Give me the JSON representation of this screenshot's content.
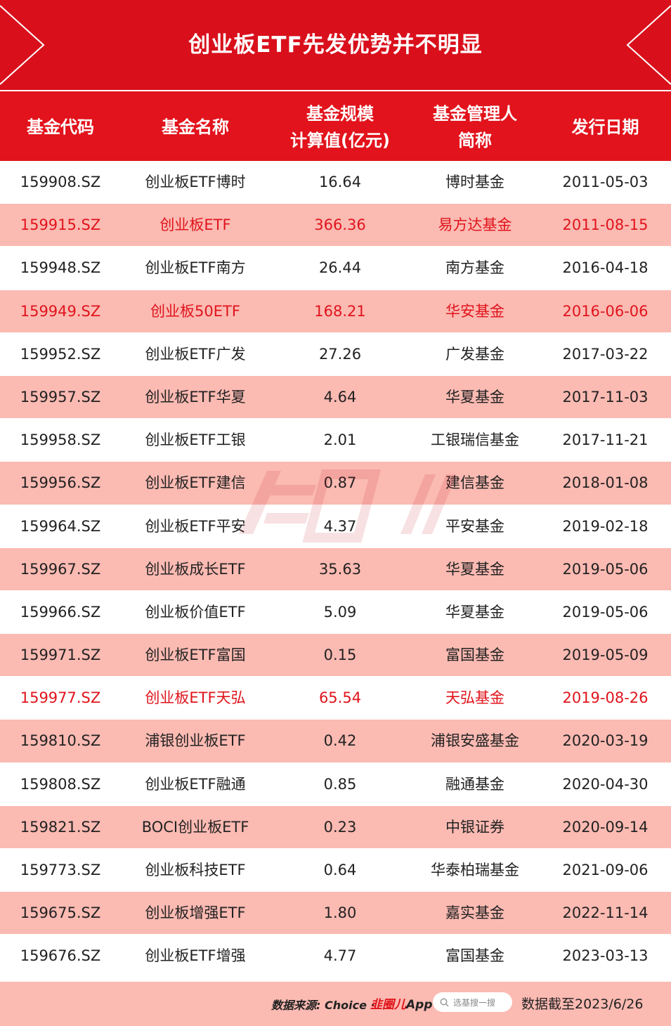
{
  "title": "创业板ETF先发优势并不明显",
  "headers": [
    [
      "基金代码"
    ],
    [
      "基金名称"
    ],
    [
      "基金规模",
      "计算值(亿元)"
    ],
    [
      "基金管理人",
      "简称"
    ],
    [
      "发行日期"
    ]
  ],
  "rows": [
    {
      "code": "159908.SZ",
      "name": "创业板ETF博时",
      "size": "16.64",
      "manager": "博时基金",
      "date": "2011-05-03",
      "highlight": false
    },
    {
      "code": "159915.SZ",
      "name": "创业板ETF",
      "size": "366.36",
      "manager": "易方达基金",
      "date": "2011-08-15",
      "highlight": true
    },
    {
      "code": "159948.SZ",
      "name": "创业板ETF南方",
      "size": "26.44",
      "manager": "南方基金",
      "date": "2016-04-18",
      "highlight": false
    },
    {
      "code": "159949.SZ",
      "name": "创业板50ETF",
      "size": "168.21",
      "manager": "华安基金",
      "date": "2016-06-06",
      "highlight": true
    },
    {
      "code": "159952.SZ",
      "name": "创业板ETF广发",
      "size": "27.26",
      "manager": "广发基金",
      "date": "2017-03-22",
      "highlight": false
    },
    {
      "code": "159957.SZ",
      "name": "创业板ETF华夏",
      "size": "4.64",
      "manager": "华夏基金",
      "date": "2017-11-03",
      "highlight": false
    },
    {
      "code": "159958.SZ",
      "name": "创业板ETF工银",
      "size": "2.01",
      "manager": "工银瑞信基金",
      "date": "2017-11-21",
      "highlight": false
    },
    {
      "code": "159956.SZ",
      "name": "创业板ETF建信",
      "size": "0.87",
      "manager": "建信基金",
      "date": "2018-01-08",
      "highlight": false
    },
    {
      "code": "159964.SZ",
      "name": "创业板ETF平安",
      "size": "4.37",
      "manager": "平安基金",
      "date": "2019-02-18",
      "highlight": false
    },
    {
      "code": "159967.SZ",
      "name": "创业板成长ETF",
      "size": "35.63",
      "manager": "华夏基金",
      "date": "2019-05-06",
      "highlight": false
    },
    {
      "code": "159966.SZ",
      "name": "创业板价值ETF",
      "size": "5.09",
      "manager": "华夏基金",
      "date": "2019-05-06",
      "highlight": false
    },
    {
      "code": "159971.SZ",
      "name": "创业板ETF富国",
      "size": "0.15",
      "manager": "富国基金",
      "date": "2019-05-09",
      "highlight": false
    },
    {
      "code": "159977.SZ",
      "name": "创业板ETF天弘",
      "size": "65.54",
      "manager": "天弘基金",
      "date": "2019-08-26",
      "highlight": true
    },
    {
      "code": "159810.SZ",
      "name": "浦银创业板ETF",
      "size": "0.42",
      "manager": "浦银安盛基金",
      "date": "2020-03-19",
      "highlight": false
    },
    {
      "code": "159808.SZ",
      "name": "创业板ETF融通",
      "size": "0.85",
      "manager": "融通基金",
      "date": "2020-04-30",
      "highlight": false
    },
    {
      "code": "159821.SZ",
      "name": "BOCI创业板ETF",
      "size": "0.23",
      "manager": "中银证券",
      "date": "2020-09-14",
      "highlight": false
    },
    {
      "code": "159773.SZ",
      "name": "创业板科技ETF",
      "size": "0.64",
      "manager": "华泰柏瑞基金",
      "date": "2021-09-06",
      "highlight": false
    },
    {
      "code": "159675.SZ",
      "name": "创业板增强ETF",
      "size": "1.80",
      "manager": "嘉实基金",
      "date": "2022-11-14",
      "highlight": false
    },
    {
      "code": "159676.SZ",
      "name": "创业板ETF增强",
      "size": "4.77",
      "manager": "富国基金",
      "date": "2023-03-13",
      "highlight": false
    }
  ],
  "footer": {
    "source": "数据来源: Choice ·",
    "app_brand": "韭圈儿",
    "app_suffix": "App",
    "search_placeholder": "选基搜一搜",
    "cutoff": "数据截至2023/6/26"
  },
  "colors": {
    "primary_red": "#d9101c",
    "shade_pink": "#fbbab2",
    "highlight_text": "#e0141c"
  }
}
